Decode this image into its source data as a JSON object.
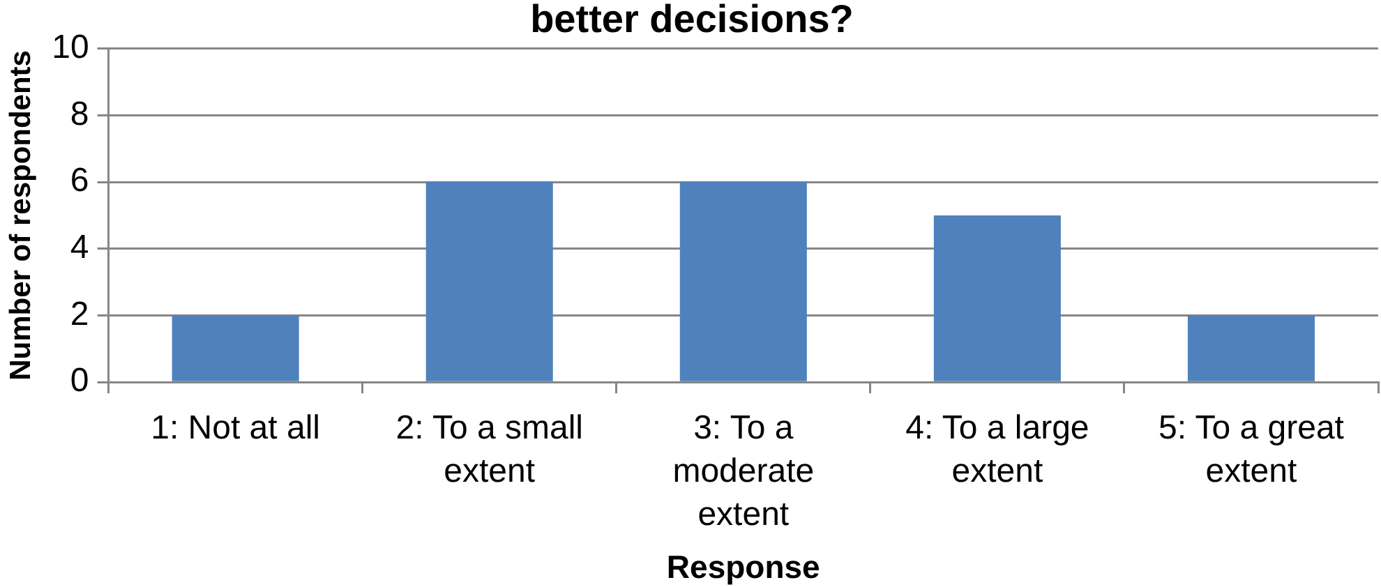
{
  "chart_data": {
    "type": "bar",
    "title": "better decisions?",
    "xlabel": "Response",
    "ylabel": "Number of respondents",
    "categories": [
      "1: Not at all",
      "2: To a small extent",
      "3: To a moderate extent",
      "4: To a large extent",
      "5: To a great extent"
    ],
    "values": [
      2,
      6,
      6,
      5,
      2
    ],
    "color": "#4f81bd",
    "ylim": [
      0,
      10
    ],
    "yticks": [
      0,
      2,
      4,
      6,
      8,
      10
    ],
    "grid": "y"
  }
}
